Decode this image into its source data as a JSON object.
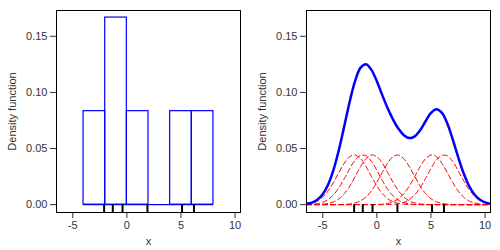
{
  "chart_data": [
    {
      "type": "histogram",
      "bins": [
        -4,
        -2,
        0,
        2,
        4,
        6,
        8
      ],
      "values": [
        0.0833,
        0.1667,
        0.0833,
        0,
        0.0833,
        0.0833
      ],
      "color": "#0000ff",
      "rug": [
        -2.1,
        -1.3,
        -0.4,
        1.9,
        5.1,
        6.2
      ],
      "xlabel": "x",
      "ylabel": "Density function",
      "xlim": [
        -6.5,
        10.5
      ],
      "xticks": [
        -5,
        0,
        5,
        10
      ],
      "ylim": [
        -0.007,
        0.173
      ],
      "yticks": [
        {
          "value": 0,
          "label": "0.00"
        },
        {
          "value": 0.05,
          "label": "0.05"
        },
        {
          "value": 0.1,
          "label": "0.10"
        },
        {
          "value": 0.15,
          "label": "0.15"
        }
      ],
      "grid": false
    },
    {
      "type": "line",
      "x": [
        -6.5,
        -6,
        -5.5,
        -5,
        -4.5,
        -4,
        -3.5,
        -3,
        -2.5,
        -2,
        -1.5,
        -1,
        -0.5,
        0,
        0.5,
        1,
        1.5,
        2,
        2.5,
        3,
        3.5,
        4,
        4.5,
        5,
        5.5,
        6,
        6.5,
        7,
        7.5,
        8,
        8.5,
        9,
        9.5,
        10,
        10.5
      ],
      "series": [
        {
          "color": "#0000ff",
          "line_style": "solid",
          "values": [
            0.0007,
            0.0018,
            0.0044,
            0.0093,
            0.018,
            0.0312,
            0.0491,
            0.0704,
            0.0922,
            0.1106,
            0.1221,
            0.1251,
            0.1201,
            0.1099,
            0.0976,
            0.0858,
            0.0758,
            0.0676,
            0.0619,
            0.0593,
            0.0608,
            0.0663,
            0.0743,
            0.0817,
            0.0851,
            0.082,
            0.0726,
            0.0585,
            0.0428,
            0.0284,
            0.0171,
            0.0093,
            0.0045,
            0.002,
            0.0008
          ]
        },
        {
          "color": "#ff0000",
          "line_style": "dashed",
          "values": [
            0.0006,
            0.0015,
            0.0034,
            0.0068,
            0.0123,
            0.0199,
            0.0287,
            0.037,
            0.0428,
            0.0442,
            0.0409,
            0.0339,
            0.0251,
            0.0166,
            0.0099,
            0.0052,
            0.0025,
            0.0011,
            0.0004,
            0.0001,
            0,
            0,
            0,
            0,
            0,
            0,
            0,
            0,
            0,
            0,
            0,
            0,
            0,
            0,
            0
          ]
        },
        {
          "color": "#ff0000",
          "line_style": "dashed",
          "values": [
            0.0001,
            0.0003,
            0.0009,
            0.0021,
            0.0046,
            0.0088,
            0.0151,
            0.0233,
            0.0322,
            0.0398,
            0.0439,
            0.0435,
            0.0385,
            0.0305,
            0.0216,
            0.0137,
            0.0078,
            0.0039,
            0.0018,
            0.0007,
            0.0003,
            0.0001,
            0,
            0,
            0,
            0,
            0,
            0,
            0,
            0,
            0,
            0,
            0,
            0,
            0
          ]
        },
        {
          "color": "#ff0000",
          "line_style": "dashed",
          "values": [
            0,
            0,
            0.0001,
            0.0004,
            0.0011,
            0.0025,
            0.0052,
            0.0099,
            0.0166,
            0.0251,
            0.0339,
            0.0409,
            0.0442,
            0.0428,
            0.037,
            0.0287,
            0.0199,
            0.0123,
            0.0068,
            0.0034,
            0.0015,
            0.0006,
            0.0002,
            0.0001,
            0,
            0,
            0,
            0,
            0,
            0,
            0,
            0,
            0,
            0,
            0
          ]
        },
        {
          "color": "#ff0000",
          "line_style": "dashed",
          "values": [
            0,
            0,
            0,
            0,
            0,
            0,
            0.0001,
            0.0002,
            0.0006,
            0.0015,
            0.0034,
            0.0068,
            0.0123,
            0.0199,
            0.0287,
            0.037,
            0.0428,
            0.0442,
            0.0409,
            0.0339,
            0.0251,
            0.0166,
            0.0099,
            0.0052,
            0.0025,
            0.0011,
            0.0004,
            0.0001,
            0,
            0,
            0,
            0,
            0,
            0,
            0
          ]
        },
        {
          "color": "#ff0000",
          "line_style": "dashed",
          "values": [
            0,
            0,
            0,
            0,
            0,
            0,
            0,
            0,
            0,
            0,
            0,
            0,
            0,
            0.0001,
            0.0004,
            0.0011,
            0.0025,
            0.0052,
            0.0099,
            0.0166,
            0.0251,
            0.0339,
            0.0409,
            0.0442,
            0.0428,
            0.037,
            0.0287,
            0.0199,
            0.0123,
            0.0068,
            0.0034,
            0.0015,
            0.0006,
            0.0002,
            0.0001
          ]
        },
        {
          "color": "#ff0000",
          "line_style": "dashed",
          "values": [
            0,
            0,
            0,
            0,
            0,
            0,
            0,
            0,
            0,
            0,
            0,
            0,
            0,
            0,
            0,
            0.0001,
            0.0003,
            0.0009,
            0.0021,
            0.0046,
            0.0088,
            0.0151,
            0.0233,
            0.0322,
            0.0398,
            0.0439,
            0.0435,
            0.0385,
            0.0305,
            0.0216,
            0.0137,
            0.0078,
            0.0039,
            0.0018,
            0.0007
          ]
        }
      ],
      "rug": [
        -2.1,
        -1.3,
        -0.4,
        1.9,
        5.1,
        6.2
      ],
      "xlabel": "x",
      "ylabel": "Density function",
      "xlim": [
        -6.5,
        10.5
      ],
      "xticks": [
        -5,
        0,
        5,
        10
      ],
      "ylim": [
        -0.007,
        0.173
      ],
      "yticks": [
        {
          "value": 0,
          "label": "0.00"
        },
        {
          "value": 0.05,
          "label": "0.05"
        },
        {
          "value": 0.1,
          "label": "0.10"
        },
        {
          "value": 0.15,
          "label": "0.15"
        }
      ],
      "grid": false
    }
  ]
}
